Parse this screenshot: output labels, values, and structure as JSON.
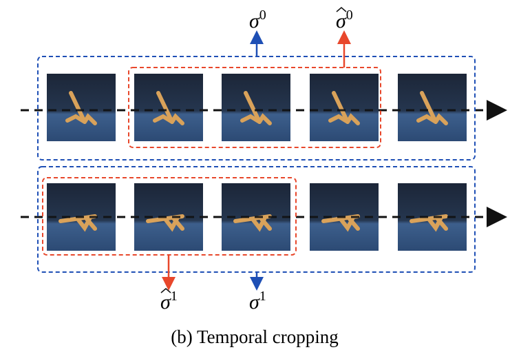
{
  "labels": {
    "top_blue": {
      "symbol": "σ",
      "sup": "0"
    },
    "top_red": {
      "symbol": "σ",
      "sup": "0"
    },
    "bottom_red": {
      "symbol": "σ",
      "sup": "1"
    },
    "bottom_blue": {
      "symbol": "σ",
      "sup": "1"
    }
  },
  "caption": "(b) Temporal cropping"
}
